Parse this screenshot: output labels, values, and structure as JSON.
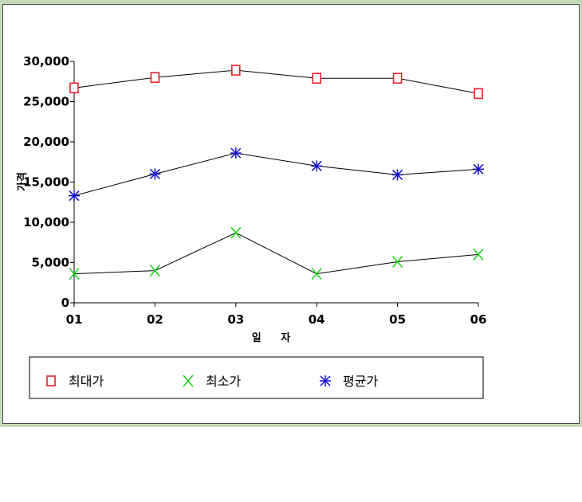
{
  "chart_data": {
    "type": "line",
    "categories": [
      "01",
      "02",
      "03",
      "04",
      "05",
      "06"
    ],
    "xlabel": "일 자",
    "ylabel": "가격",
    "ylim": [
      0,
      30000
    ],
    "yticks": [
      0,
      5000,
      10000,
      15000,
      20000,
      25000,
      30000
    ],
    "ytick_labels": [
      "0",
      "5,000",
      "10,000",
      "15,000",
      "20,000",
      "25,000",
      "30,000"
    ],
    "legend_position": "bottom",
    "series": [
      {
        "name": "최대가",
        "marker": "square",
        "color": "#e8202a",
        "values": [
          26700,
          28000,
          28900,
          27900,
          27900,
          26000
        ]
      },
      {
        "name": "최소가",
        "marker": "x",
        "color": "#1ed41e",
        "values": [
          3600,
          4000,
          8700,
          3600,
          5100,
          6000
        ]
      },
      {
        "name": "평균가",
        "marker": "asterisk",
        "color": "#1010d0",
        "values": [
          13300,
          16000,
          18600,
          17000,
          15900,
          16600
        ]
      }
    ],
    "line_color": "#000000",
    "grid": false
  }
}
